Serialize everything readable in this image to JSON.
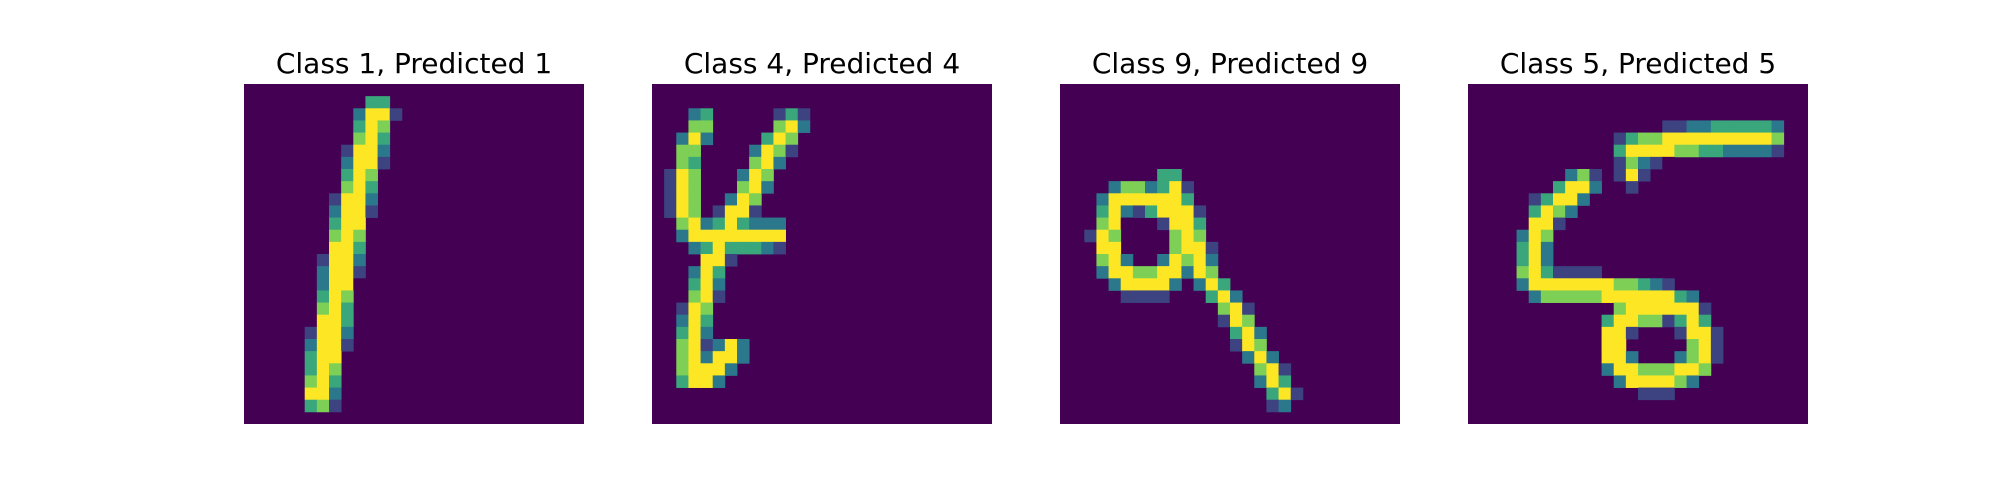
{
  "figure": {
    "background": "#ffffff",
    "colormap": "viridis",
    "colormap_stops": [
      "#440154",
      "#3b528b",
      "#21918c",
      "#5ec962",
      "#fde725"
    ]
  },
  "chart_data": [
    {
      "type": "heatmap",
      "title": "Class 1, Predicted 1",
      "true_class": 1,
      "predicted_class": 1,
      "grid_size": [
        28,
        28
      ],
      "value_range": [
        0,
        1
      ],
      "axes_visible": false,
      "strokes": [
        {
          "points": [
            [
              6.2,
              25.6
            ],
            [
              8.3,
              13.5
            ],
            [
              9.6,
              7.5
            ],
            [
              10.9,
              2.5
            ]
          ],
          "width": 2.5
        }
      ]
    },
    {
      "type": "heatmap",
      "title": "Class 4, Predicted 4",
      "true_class": 4,
      "predicted_class": 4,
      "grid_size": [
        28,
        28
      ],
      "value_range": [
        0,
        1
      ],
      "axes_visible": false,
      "strokes": [
        {
          "points": [
            [
              11.5,
              3.4
            ],
            [
              9.8,
              5.5
            ],
            [
              8.0,
              9.0
            ],
            [
              6.0,
              12.2
            ],
            [
              5.0,
              14.5
            ]
          ],
          "width": 1.9
        },
        {
          "points": [
            [
              2.8,
              7.5
            ],
            [
              2.8,
              10.5
            ],
            [
              3.7,
              12.5
            ],
            [
              6.0,
              12.6
            ],
            [
              8.6,
              12.6
            ],
            [
              10.0,
              12.4
            ]
          ],
          "width": 1.9
        },
        {
          "points": [
            [
              5.0,
              14.5
            ],
            [
              3.8,
              18.5
            ],
            [
              3.2,
              21.5
            ],
            [
              3.2,
              24.0
            ]
          ],
          "width": 1.9
        },
        {
          "points": [
            [
              3.2,
              24.0
            ],
            [
              4.5,
              24.0
            ],
            [
              5.5,
              23.0
            ],
            [
              6.5,
              22.0
            ]
          ],
          "width": 1.9
        },
        {
          "points": [
            [
              4.2,
              3.2
            ],
            [
              3.0,
              5.5
            ],
            [
              2.8,
              7.5
            ]
          ],
          "width": 1.6
        }
      ]
    },
    {
      "type": "heatmap",
      "title": "Class 9, Predicted 9",
      "true_class": 9,
      "predicted_class": 9,
      "grid_size": [
        28,
        28
      ],
      "value_range": [
        0,
        1
      ],
      "axes_visible": false,
      "strokes": [
        {
          "points": [
            [
              7.0,
              9.4
            ],
            [
              9.3,
              10.4
            ],
            [
              10.3,
              12.5
            ],
            [
              9.8,
              14.8
            ],
            [
              8.2,
              16.2
            ],
            [
              5.8,
              16.2
            ],
            [
              4.2,
              14.8
            ],
            [
              3.8,
              12.3
            ],
            [
              4.5,
              9.9
            ],
            [
              6.0,
              8.9
            ],
            [
              7.0,
              9.4
            ]
          ],
          "width": 1.9
        },
        {
          "points": [
            [
              9.0,
              8.0
            ],
            [
              10.5,
              11.0
            ],
            [
              11.8,
              15.5
            ],
            [
              14.2,
              18.5
            ],
            [
              16.5,
              22.5
            ],
            [
              18.3,
              25.5
            ]
          ],
          "width": 1.7
        }
      ]
    },
    {
      "type": "heatmap",
      "title": "Class 5, Predicted 5",
      "true_class": 5,
      "predicted_class": 5,
      "grid_size": [
        28,
        28
      ],
      "value_range": [
        0,
        1
      ],
      "axes_visible": false,
      "strokes": [
        {
          "points": [
            [
              13.5,
              5.5
            ],
            [
              17.5,
              4.8
            ],
            [
              21.5,
              4.4
            ],
            [
              24.8,
              4.4
            ]
          ],
          "width": 2.1
        },
        {
          "points": [
            [
              14.0,
              5.5
            ],
            [
              13.5,
              7.5
            ]
          ],
          "width": 1.2
        },
        {
          "points": [
            [
              9.5,
              8.2
            ],
            [
              6.5,
              10.5
            ],
            [
              5.5,
              13.0
            ],
            [
              5.2,
              15.5
            ],
            [
              6.5,
              16.8
            ],
            [
              9.0,
              16.8
            ],
            [
              12.0,
              17.0
            ],
            [
              15.0,
              17.5
            ],
            [
              18.0,
              18.5
            ],
            [
              19.3,
              21.0
            ],
            [
              19.0,
              23.0
            ],
            [
              16.5,
              24.2
            ],
            [
              13.5,
              24.0
            ],
            [
              12.0,
              22.5
            ],
            [
              12.0,
              20.5
            ],
            [
              13.0,
              19.0
            ],
            [
              15.5,
              18.8
            ]
          ],
          "width": 2.0
        }
      ]
    }
  ]
}
